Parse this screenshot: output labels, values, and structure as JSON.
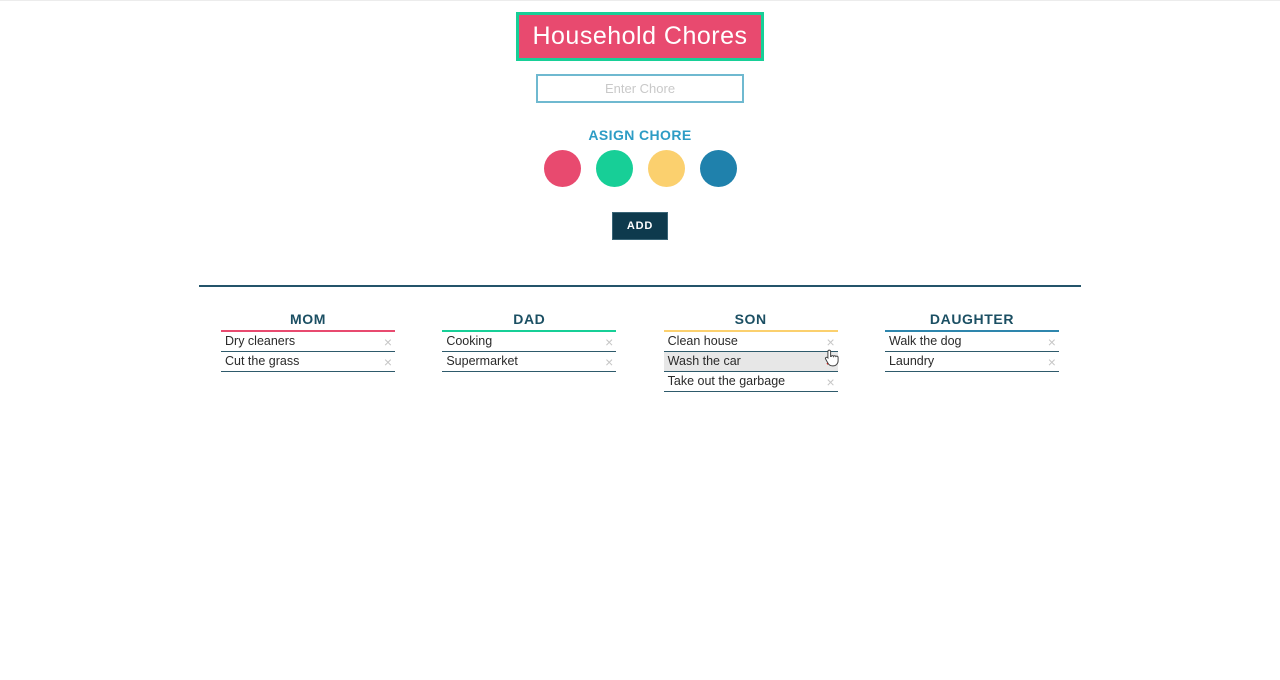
{
  "header": {
    "title": "Household Chores"
  },
  "form": {
    "input_placeholder": "Enter Chore",
    "input_value": "",
    "assign_label": "ASIGN CHORE",
    "add_button": "ADD",
    "swatches": [
      {
        "name": "pink-swatch",
        "color": "#e84a6f"
      },
      {
        "name": "green-swatch",
        "color": "#17cf97"
      },
      {
        "name": "yellow-swatch",
        "color": "#fbd06e"
      },
      {
        "name": "blue-swatch",
        "color": "#1f81ac"
      }
    ]
  },
  "board": {
    "delete_glyph": "×",
    "members": [
      {
        "name": "MOM",
        "accent": "#e84a6f",
        "chores": [
          {
            "label": "Dry cleaners"
          },
          {
            "label": "Cut the grass"
          }
        ]
      },
      {
        "name": "DAD",
        "accent": "#17cf97",
        "chores": [
          {
            "label": "Cooking"
          },
          {
            "label": "Supermarket"
          }
        ]
      },
      {
        "name": "SON",
        "accent": "#fbd06e",
        "chores": [
          {
            "label": "Clean house"
          },
          {
            "label": "Wash the car",
            "highlighted": true,
            "delete_hovered": true
          },
          {
            "label": "Take out the garbage"
          }
        ]
      },
      {
        "name": "DAUGHTER",
        "accent": "#2e86ad",
        "chores": [
          {
            "label": "Walk the dog"
          },
          {
            "label": "Laundry"
          }
        ]
      }
    ]
  },
  "colors": {
    "title_bg": "#e84a6f",
    "title_border": "#17cf97",
    "input_border": "#6fb9d0",
    "assign_text": "#2d9cc5",
    "add_button_bg": "#0e3a4d",
    "divider_line": "#24546a",
    "member_name_text": "#1b4f63",
    "item_border": "#2e5a6b",
    "highlight_bg": "#e7e7e7",
    "delete_idle": "#c6c6c6",
    "delete_hover_red": "#e8150f"
  }
}
